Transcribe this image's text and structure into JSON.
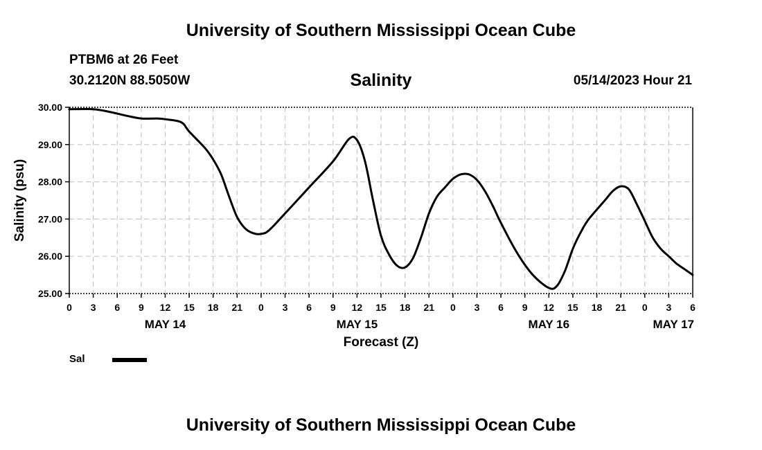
{
  "header": {
    "title": "University of Southern Mississippi Ocean Cube",
    "station": "PTBM6 at 26 Feet",
    "coordinates": "30.2120N  88.5050W",
    "timestamp": "05/14/2023 Hour 21"
  },
  "footer": {
    "title": "University of Southern Mississippi Ocean Cube"
  },
  "legend": {
    "label": "Sal"
  },
  "colors": {
    "line": "#000000",
    "grid": "#c8c8c8",
    "axis": "#000000"
  },
  "chart_data": {
    "type": "line",
    "title": "Salinity",
    "xlabel": "Forecast (Z)",
    "ylabel": "Salinity (psu)",
    "grid": true,
    "xlim": [
      0,
      78
    ],
    "ylim": [
      25.0,
      30.0
    ],
    "yticks": [
      "25.00",
      "26.00",
      "27.00",
      "28.00",
      "29.00",
      "30.00"
    ],
    "xticks": [
      {
        "x": 0,
        "label": "0"
      },
      {
        "x": 3,
        "label": "3"
      },
      {
        "x": 6,
        "label": "6"
      },
      {
        "x": 9,
        "label": "9"
      },
      {
        "x": 12,
        "label": "12"
      },
      {
        "x": 15,
        "label": "15"
      },
      {
        "x": 18,
        "label": "18"
      },
      {
        "x": 21,
        "label": "21"
      },
      {
        "x": 24,
        "label": "0"
      },
      {
        "x": 27,
        "label": "3"
      },
      {
        "x": 30,
        "label": "6"
      },
      {
        "x": 33,
        "label": "9"
      },
      {
        "x": 36,
        "label": "12"
      },
      {
        "x": 39,
        "label": "15"
      },
      {
        "x": 42,
        "label": "18"
      },
      {
        "x": 45,
        "label": "21"
      },
      {
        "x": 48,
        "label": "0"
      },
      {
        "x": 51,
        "label": "3"
      },
      {
        "x": 54,
        "label": "6"
      },
      {
        "x": 57,
        "label": "9"
      },
      {
        "x": 60,
        "label": "12"
      },
      {
        "x": 63,
        "label": "15"
      },
      {
        "x": 66,
        "label": "18"
      },
      {
        "x": 69,
        "label": "21"
      },
      {
        "x": 72,
        "label": "0"
      },
      {
        "x": 75,
        "label": "3"
      },
      {
        "x": 78,
        "label": "6"
      }
    ],
    "date_labels": [
      {
        "x": 12,
        "label": "MAY 14"
      },
      {
        "x": 36,
        "label": "MAY 15"
      },
      {
        "x": 60,
        "label": "MAY 16"
      },
      {
        "x": 78,
        "label": "MAY 17"
      }
    ],
    "series": [
      {
        "name": "Sal",
        "x": [
          0,
          3,
          5,
          7,
          9,
          11,
          12,
          14,
          15,
          17,
          18,
          19,
          20,
          21,
          22,
          23,
          24,
          25,
          27,
          30,
          33,
          35,
          36,
          37,
          38,
          39,
          40,
          41,
          42,
          43,
          44,
          45,
          46,
          47,
          48,
          49,
          50,
          51,
          52,
          53,
          54,
          56,
          58,
          60,
          61,
          62,
          63,
          64,
          65,
          67,
          68,
          69,
          70,
          71,
          72,
          73,
          74,
          75,
          76,
          77,
          78
        ],
        "values": [
          29.95,
          29.95,
          29.88,
          29.78,
          29.7,
          29.7,
          29.68,
          29.6,
          29.35,
          28.9,
          28.6,
          28.2,
          27.6,
          27.05,
          26.75,
          26.62,
          26.6,
          26.7,
          27.15,
          27.85,
          28.55,
          29.15,
          29.12,
          28.55,
          27.5,
          26.55,
          26.05,
          25.75,
          25.7,
          25.95,
          26.5,
          27.15,
          27.6,
          27.85,
          28.08,
          28.2,
          28.2,
          28.05,
          27.75,
          27.35,
          26.9,
          26.1,
          25.5,
          25.15,
          25.2,
          25.6,
          26.2,
          26.65,
          27.0,
          27.5,
          27.75,
          27.88,
          27.8,
          27.4,
          26.95,
          26.5,
          26.2,
          26.0,
          25.8,
          25.65,
          25.5
        ]
      }
    ]
  }
}
